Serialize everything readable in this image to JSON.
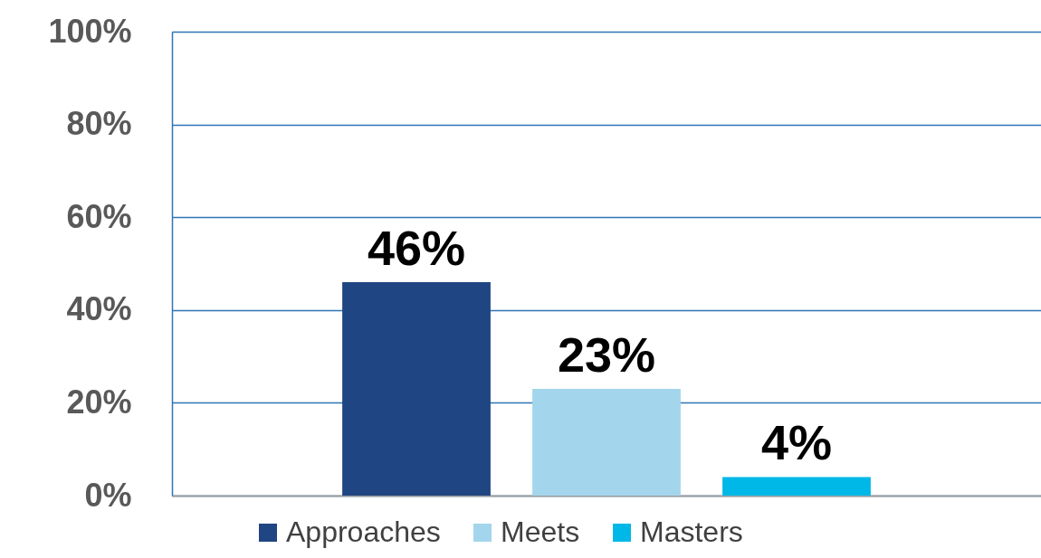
{
  "chart_data": {
    "type": "bar",
    "categories": [
      null
    ],
    "series": [
      {
        "name": "Approaches",
        "color": "#1f4582",
        "values": [
          46
        ],
        "value_labels": [
          "46%"
        ]
      },
      {
        "name": "Meets",
        "color": "#a3d5ec",
        "values": [
          23
        ],
        "value_labels": [
          "23%"
        ]
      },
      {
        "name": "Masters",
        "color": "#00b8e8",
        "values": [
          4
        ],
        "value_labels": [
          "4%"
        ]
      }
    ],
    "ylim": [
      0,
      100
    ],
    "yticks": [
      {
        "value": 0,
        "label": "0%"
      },
      {
        "value": 20,
        "label": "20%"
      },
      {
        "value": 40,
        "label": "40%"
      },
      {
        "value": 60,
        "label": "60%"
      },
      {
        "value": 80,
        "label": "80%"
      },
      {
        "value": 100,
        "label": "100%"
      }
    ],
    "grid": "y",
    "legend": "bottom",
    "tick_labels": "y"
  }
}
